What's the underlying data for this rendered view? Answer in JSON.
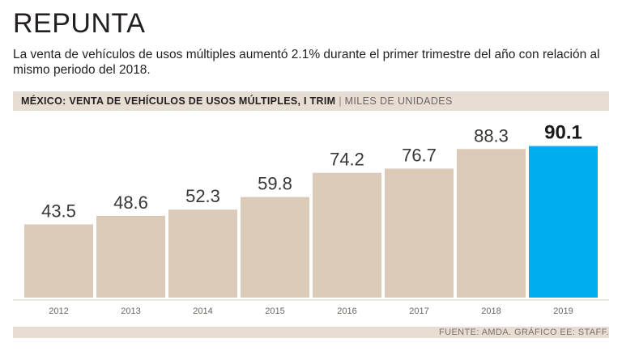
{
  "header": {
    "title": "REPUNTA",
    "subtitle": "La venta de vehículos de usos múltiples aumentó 2.1% durante el primer trimestre del año con relación al mismo periodo del 2018."
  },
  "chart_header": {
    "main": "MÉXICO: VENTA DE VEHÍCULOS DE USOS MÚLTIPLES, I TRIM",
    "separator": "|",
    "unit": "MILES DE UNIDADES"
  },
  "footer": {
    "source": "FUENTE: AMDA. GRÁFICO EE: STAFF."
  },
  "colors": {
    "bar": "#dbcab8",
    "highlight": "#00aeef",
    "band": "#e6ddd3",
    "baseline": "#d8cfc5"
  },
  "chart_data": {
    "type": "bar",
    "title": "MÉXICO: VENTA DE VEHÍCULOS DE USOS MÚLTIPLES, I TRIM",
    "ylabel": "MILES DE UNIDADES",
    "xlabel": "",
    "categories": [
      "2012",
      "2013",
      "2014",
      "2015",
      "2016",
      "2017",
      "2018",
      "2019"
    ],
    "values": [
      43.5,
      48.6,
      52.3,
      59.8,
      74.2,
      76.7,
      88.3,
      90.1
    ],
    "value_labels": [
      "43.5",
      "48.6",
      "52.3",
      "59.8",
      "74.2",
      "76.7",
      "88.3",
      "90.1"
    ],
    "highlight_category": "2019",
    "ylim": [
      0,
      100
    ],
    "grid": false
  }
}
